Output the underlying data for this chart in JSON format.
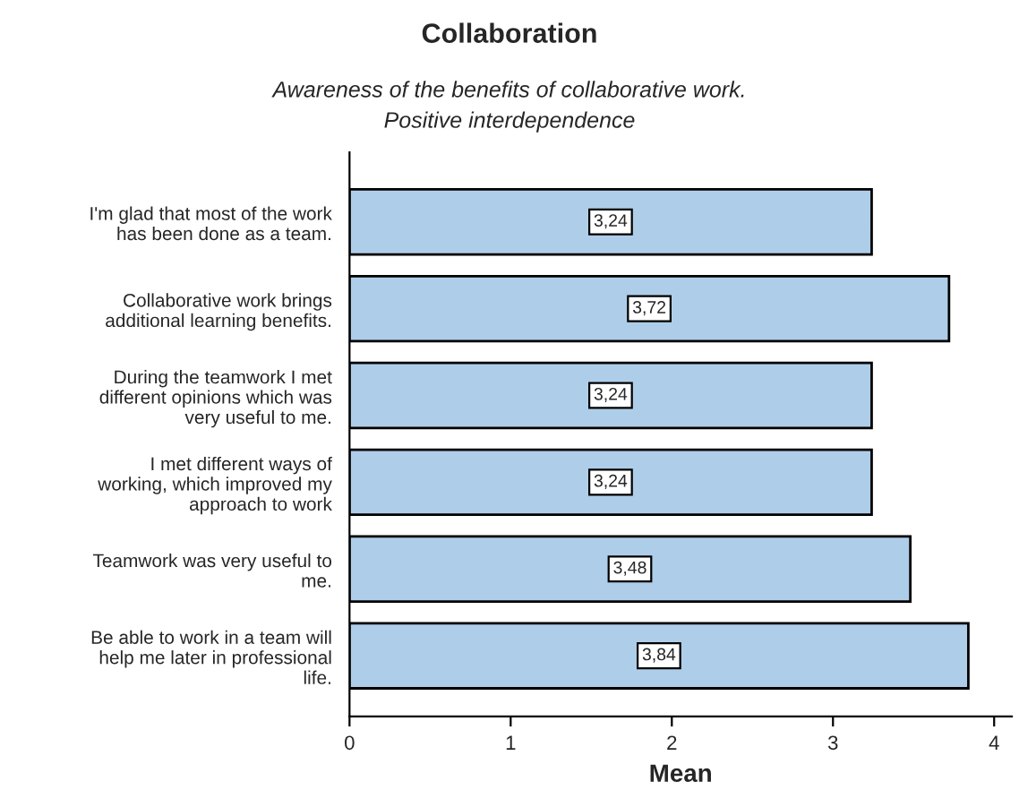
{
  "chart_data": {
    "type": "bar",
    "orientation": "horizontal",
    "title": "Collaboration",
    "subtitle": "Awareness of the benefits of collaborative work.\nPositive interdependence",
    "xlabel": "Mean",
    "categories": [
      "I'm glad that most of the work\nhas been done as a team.",
      "Collaborative work brings\nadditional learning benefits.",
      "During the teamwork I met\ndifferent opinions which was\nvery useful to me.",
      "I met different ways of\nworking, which improved my\napproach to work",
      "Teamwork was very useful to\nme.",
      "Be able to work in a team will\nhelp me later in professional\nlife."
    ],
    "values": [
      3.24,
      3.72,
      3.24,
      3.24,
      3.48,
      3.84
    ],
    "value_labels": [
      "3,24",
      "3,72",
      "3,24",
      "3,24",
      "3,48",
      "3,84"
    ],
    "color": "#aecde9",
    "xlim": [
      0,
      4.11
    ],
    "xticks": [
      0,
      1,
      2,
      3,
      4
    ],
    "grid": false,
    "legend": false
  }
}
